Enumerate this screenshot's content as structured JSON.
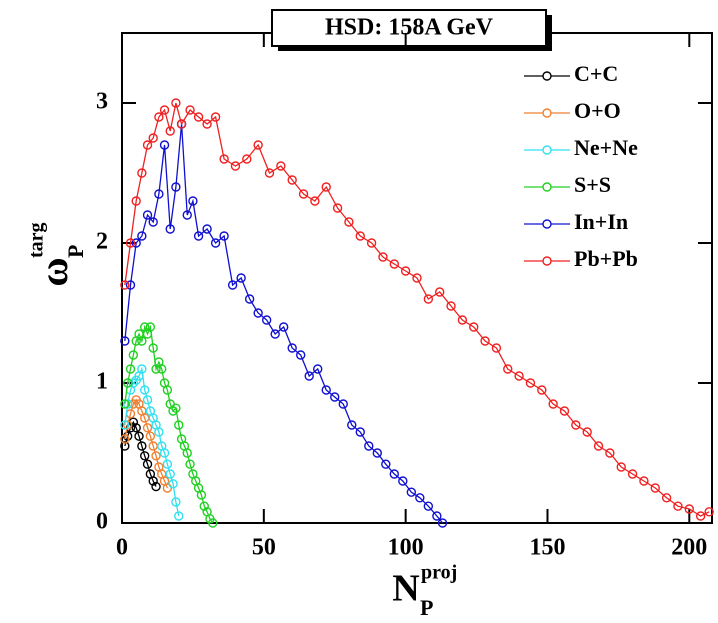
{
  "chart_data": {
    "type": "line",
    "title": "HSD: 158A GeV",
    "xlabel": {
      "main": "N",
      "sub": "P",
      "sup": "proj"
    },
    "ylabel": {
      "main": "ω",
      "sub": "P",
      "sup": "targ"
    },
    "xlim": [
      0,
      208
    ],
    "ylim": [
      0,
      3.5
    ],
    "xticks": [
      0,
      50,
      100,
      150,
      200
    ],
    "yticks": [
      0,
      1,
      2,
      3
    ],
    "legend": "upper right",
    "series": [
      {
        "name": "C+C",
        "color": "#000000",
        "x": [
          1,
          2,
          3,
          4,
          5,
          6,
          7,
          8,
          9,
          10,
          11,
          12
        ],
        "values": [
          0.55,
          0.62,
          0.68,
          0.72,
          0.68,
          0.62,
          0.55,
          0.48,
          0.42,
          0.35,
          0.3,
          0.26
        ]
      },
      {
        "name": "O+O",
        "color": "#f08030",
        "x": [
          1,
          2,
          3,
          4,
          5,
          6,
          7,
          8,
          9,
          10,
          11,
          12,
          13,
          14,
          15,
          16
        ],
        "values": [
          0.6,
          0.7,
          0.78,
          0.85,
          0.88,
          0.85,
          0.8,
          0.75,
          0.68,
          0.62,
          0.55,
          0.48,
          0.4,
          0.35,
          0.3,
          0.25
        ]
      },
      {
        "name": "Ne+Ne",
        "color": "#30e0f0",
        "x": [
          1,
          2,
          3,
          4,
          5,
          6,
          7,
          8,
          9,
          10,
          11,
          12,
          13,
          14,
          15,
          16,
          17,
          18,
          19,
          20
        ],
        "values": [
          0.7,
          0.85,
          0.95,
          1.0,
          1.02,
          1.05,
          1.1,
          0.95,
          0.88,
          0.8,
          0.75,
          0.7,
          0.65,
          0.55,
          0.5,
          0.42,
          0.35,
          0.28,
          0.15,
          0.05
        ]
      },
      {
        "name": "S+S",
        "color": "#20d020",
        "x": [
          1,
          2,
          3,
          4,
          5,
          6,
          7,
          8,
          9,
          10,
          11,
          12,
          13,
          14,
          15,
          16,
          17,
          18,
          19,
          20,
          21,
          22,
          23,
          24,
          25,
          26,
          27,
          28,
          29,
          30,
          31,
          32
        ],
        "values": [
          0.85,
          1.0,
          1.1,
          1.2,
          1.3,
          1.35,
          1.3,
          1.4,
          1.35,
          1.4,
          1.25,
          1.1,
          1.15,
          1.1,
          1.0,
          0.95,
          0.85,
          0.8,
          0.82,
          0.7,
          0.6,
          0.55,
          0.5,
          0.42,
          0.35,
          0.3,
          0.25,
          0.2,
          0.12,
          0.08,
          0.03,
          0.0
        ]
      },
      {
        "name": "In+In",
        "color": "#1010d0",
        "x": [
          1,
          3,
          5,
          7,
          9,
          11,
          13,
          15,
          17,
          19,
          21,
          23,
          25,
          27,
          30,
          33,
          36,
          39,
          42,
          45,
          48,
          51,
          54,
          57,
          60,
          63,
          66,
          69,
          72,
          75,
          78,
          81,
          84,
          87,
          90,
          93,
          96,
          99,
          102,
          105,
          108,
          111,
          113
        ],
        "values": [
          1.3,
          1.7,
          2.0,
          2.05,
          2.2,
          2.15,
          2.35,
          2.7,
          2.1,
          2.4,
          2.85,
          2.2,
          2.3,
          2.05,
          2.1,
          2.0,
          2.05,
          1.7,
          1.75,
          1.6,
          1.5,
          1.45,
          1.35,
          1.4,
          1.25,
          1.2,
          1.05,
          1.1,
          0.95,
          0.9,
          0.85,
          0.7,
          0.65,
          0.55,
          0.5,
          0.42,
          0.35,
          0.3,
          0.22,
          0.18,
          0.12,
          0.05,
          0.0
        ]
      },
      {
        "name": "Pb+Pb",
        "color": "#f02020",
        "x": [
          1,
          3,
          5,
          7,
          9,
          11,
          13,
          15,
          17,
          19,
          21,
          24,
          27,
          30,
          33,
          36,
          40,
          44,
          48,
          52,
          56,
          60,
          64,
          68,
          72,
          76,
          80,
          84,
          88,
          92,
          96,
          100,
          104,
          108,
          112,
          116,
          120,
          124,
          128,
          132,
          136,
          140,
          144,
          148,
          152,
          156,
          160,
          164,
          168,
          172,
          176,
          180,
          184,
          188,
          192,
          196,
          200,
          204,
          207
        ],
        "values": [
          1.7,
          2.0,
          2.3,
          2.5,
          2.7,
          2.75,
          2.9,
          2.95,
          2.8,
          3.0,
          2.85,
          2.95,
          2.9,
          2.85,
          2.9,
          2.6,
          2.55,
          2.6,
          2.7,
          2.5,
          2.55,
          2.45,
          2.35,
          2.3,
          2.4,
          2.25,
          2.15,
          2.05,
          2.0,
          1.9,
          1.85,
          1.8,
          1.75,
          1.6,
          1.65,
          1.55,
          1.45,
          1.4,
          1.3,
          1.25,
          1.1,
          1.05,
          1.0,
          0.95,
          0.85,
          0.8,
          0.7,
          0.65,
          0.55,
          0.5,
          0.4,
          0.35,
          0.3,
          0.25,
          0.18,
          0.12,
          0.1,
          0.05,
          0.08
        ]
      }
    ]
  }
}
